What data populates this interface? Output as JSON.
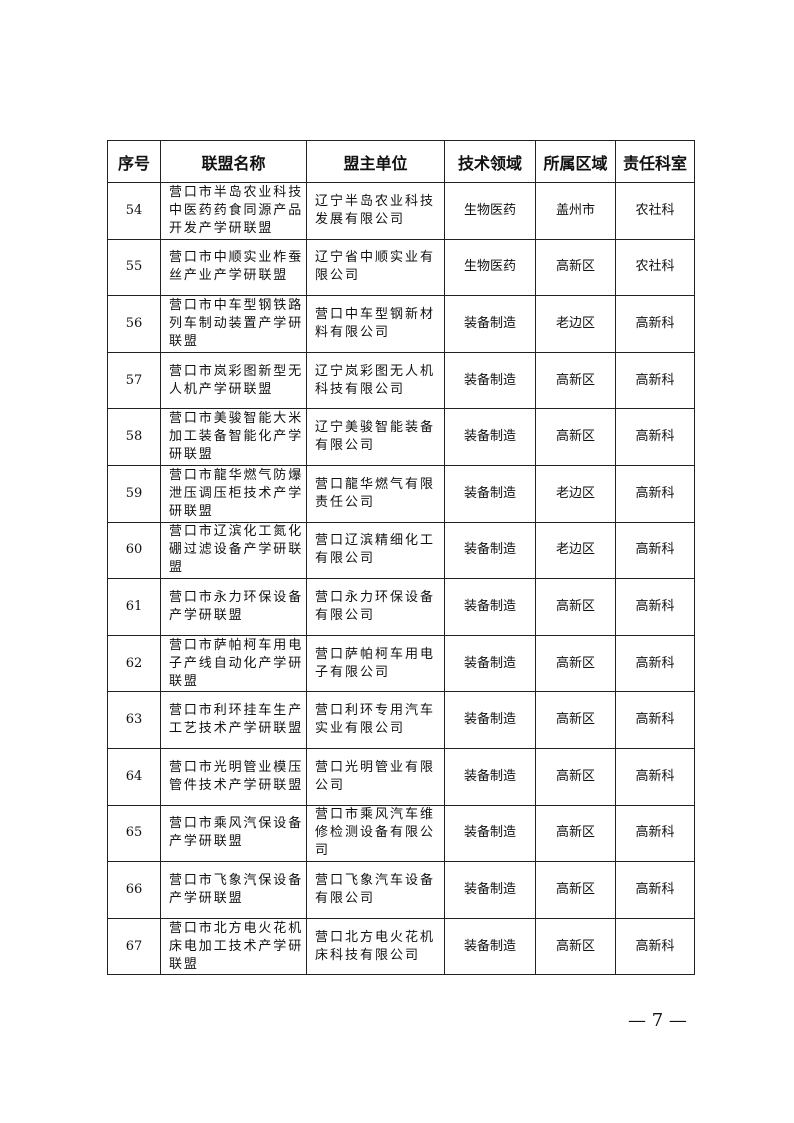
{
  "table": {
    "headers": [
      "序号",
      "联盟名称",
      "盟主单位",
      "技术领域",
      "所属区域",
      "责任科室"
    ],
    "rows": [
      [
        "54",
        "营口市半岛农业科技中医药药食同源产品开发产学研联盟",
        "辽宁半岛农业科技发展有限公司",
        "生物医药",
        "盖州市",
        "农社科"
      ],
      [
        "55",
        "营口市中顺实业柞蚕丝产业产学研联盟",
        "辽宁省中顺实业有限公司",
        "生物医药",
        "高新区",
        "农社科"
      ],
      [
        "56",
        "营口市中车型钢铁路列车制动装置产学研联盟",
        "营口中车型钢新材料有限公司",
        "装备制造",
        "老边区",
        "高新科"
      ],
      [
        "57",
        "营口市岚彩图新型无人机产学研联盟",
        "辽宁岚彩图无人机科技有限公司",
        "装备制造",
        "高新区",
        "高新科"
      ],
      [
        "58",
        "营口市美骏智能大米加工装备智能化产学研联盟",
        "辽宁美骏智能装备有限公司",
        "装备制造",
        "高新区",
        "高新科"
      ],
      [
        "59",
        "营口市龍华燃气防爆泄压调压柜技术产学研联盟",
        "营口龍华燃气有限责任公司",
        "装备制造",
        "老边区",
        "高新科"
      ],
      [
        "60",
        "营口市辽滨化工氮化硼过滤设备产学研联盟",
        "营口辽滨精细化工有限公司",
        "装备制造",
        "老边区",
        "高新科"
      ],
      [
        "61",
        "营口市永力环保设备产学研联盟",
        "营口永力环保设备有限公司",
        "装备制造",
        "高新区",
        "高新科"
      ],
      [
        "62",
        "营口市萨帕柯车用电子产线自动化产学研联盟",
        "营口萨帕柯车用电子有限公司",
        "装备制造",
        "高新区",
        "高新科"
      ],
      [
        "63",
        "营口市利环挂车生产工艺技术产学研联盟",
        "营口利环专用汽车实业有限公司",
        "装备制造",
        "高新区",
        "高新科"
      ],
      [
        "64",
        "营口市光明管业模压管件技术产学研联盟",
        "营口光明管业有限公司",
        "装备制造",
        "高新区",
        "高新科"
      ],
      [
        "65",
        "营口市乘风汽保设备产学研联盟",
        "营口市乘风汽车维修检测设备有限公司",
        "装备制造",
        "高新区",
        "高新科"
      ],
      [
        "66",
        "营口市飞象汽保设备产学研联盟",
        "营口飞象汽车设备有限公司",
        "装备制造",
        "高新区",
        "高新科"
      ],
      [
        "67",
        "营口市北方电火花机床电加工技术产学研联盟",
        "营口北方电火花机床科技有限公司",
        "装备制造",
        "高新区",
        "高新科"
      ]
    ]
  },
  "page_number": "— 7 —"
}
